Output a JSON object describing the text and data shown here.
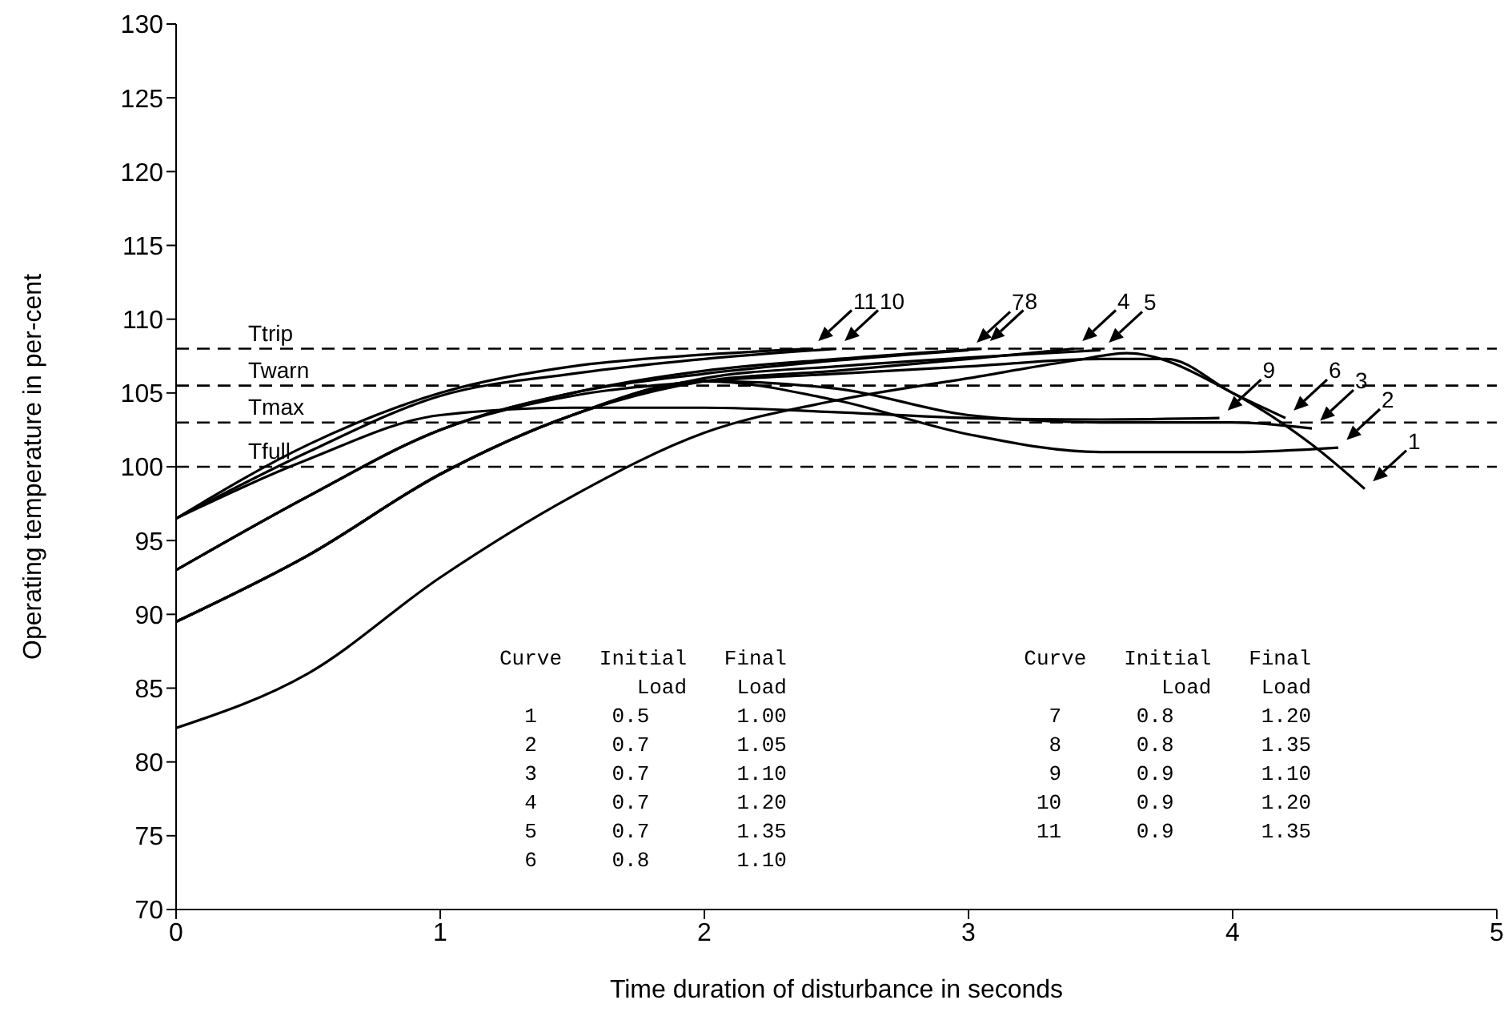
{
  "chart_data": {
    "type": "line",
    "xlabel": "Time duration of disturbance in seconds",
    "ylabel": "Operating temperature in per-cent",
    "xlim": [
      0,
      5
    ],
    "xticks": [
      0,
      1,
      2,
      3,
      4,
      5
    ],
    "ylim": [
      70,
      130
    ],
    "yticks": [
      70,
      75,
      80,
      85,
      90,
      95,
      100,
      105,
      110,
      115,
      120,
      125,
      130
    ],
    "grid": false,
    "legend": false,
    "marker": "none",
    "line_style": "solid",
    "series": [
      {
        "color": "#000000",
        "x": [
          0,
          0.5,
          1,
          1.5,
          2,
          2.5,
          3,
          3.4,
          3.6,
          4,
          4.3,
          4.5
        ],
        "values": [
          82.3,
          86,
          92.5,
          98,
          102.3,
          104.5,
          106,
          107.2,
          107.7,
          105,
          101.5,
          98.5
        ]
      },
      {
        "color": "#000000",
        "x": [
          0,
          0.5,
          1,
          1.5,
          2,
          2.5,
          3,
          3.5,
          4,
          4.4
        ],
        "values": [
          89.5,
          94,
          99.5,
          103.5,
          105.8,
          104.5,
          102.2,
          101,
          101,
          101.3
        ]
      },
      {
        "color": "#000000",
        "x": [
          0,
          0.5,
          1,
          1.5,
          2,
          2.5,
          3,
          3.5,
          4,
          4.3
        ],
        "values": [
          89.5,
          94,
          99.5,
          103.5,
          105.8,
          105.3,
          103.5,
          103,
          103,
          102.6
        ]
      },
      {
        "color": "#000000",
        "x": [
          0,
          0.5,
          1,
          1.5,
          2,
          2.5,
          3,
          3.4
        ],
        "values": [
          89.5,
          94,
          99.5,
          103.5,
          105.8,
          106.5,
          107.3,
          108
        ]
      },
      {
        "color": "#000000",
        "x": [
          0,
          0.5,
          1,
          1.5,
          2,
          2.5,
          3,
          3.5
        ],
        "values": [
          89.5,
          94,
          99.5,
          103.5,
          106,
          106.8,
          107.4,
          107.9
        ]
      },
      {
        "color": "#000000",
        "x": [
          0,
          0.5,
          1,
          1.5,
          2,
          2.5,
          3,
          3.5,
          3.75,
          4,
          4.2
        ],
        "values": [
          93,
          98,
          102.5,
          104.8,
          105.8,
          106.3,
          106.8,
          107.3,
          107.3,
          105,
          103.3
        ]
      },
      {
        "color": "#000000",
        "x": [
          0,
          0.5,
          1,
          1.5,
          2,
          2.5,
          3
        ],
        "values": [
          93,
          98,
          102.5,
          105,
          106.3,
          107.2,
          107.9
        ]
      },
      {
        "color": "#000000",
        "x": [
          0,
          0.5,
          1,
          1.5,
          2,
          2.5,
          3.05
        ],
        "values": [
          93,
          98,
          102.5,
          105,
          106.5,
          107.3,
          108
        ]
      },
      {
        "color": "#000000",
        "x": [
          0,
          0.5,
          1,
          1.5,
          2,
          2.5,
          3,
          3.5,
          3.95
        ],
        "values": [
          96.5,
          100.5,
          103.5,
          104,
          104,
          103.7,
          103.3,
          103.2,
          103.3
        ]
      },
      {
        "color": "#000000",
        "x": [
          0,
          0.5,
          1,
          1.5,
          2,
          2.5
        ],
        "values": [
          96.5,
          101,
          104.8,
          106.3,
          107.3,
          108
        ]
      },
      {
        "color": "#000000",
        "x": [
          0,
          0.5,
          1,
          1.5,
          2,
          2.4
        ],
        "values": [
          96.5,
          101.5,
          105,
          106.8,
          107.6,
          108
        ]
      }
    ],
    "ref_lines": [
      {
        "axis": "y",
        "value": 108,
        "label": "Ttrip",
        "color": "#000000",
        "line_style": "dashed"
      },
      {
        "axis": "y",
        "value": 105.5,
        "label": "Twarn",
        "color": "#000000",
        "line_style": "dashed"
      },
      {
        "axis": "y",
        "value": 103,
        "label": "Tmax",
        "color": "#000000",
        "line_style": "dashed"
      },
      {
        "axis": "y",
        "value": 100,
        "label": "Tfull",
        "color": "#000000",
        "line_style": "dashed"
      }
    ],
    "annotations": [
      {
        "text": "1",
        "x": 4.5,
        "y": 98.5
      },
      {
        "text": "2",
        "x": 4.4,
        "y": 101.3
      },
      {
        "text": "3",
        "x": 4.3,
        "y": 102.6
      },
      {
        "text": "4",
        "x": 3.4,
        "y": 108
      },
      {
        "text": "5",
        "x": 3.5,
        "y": 107.9
      },
      {
        "text": "6",
        "x": 4.2,
        "y": 103.3
      },
      {
        "text": "7",
        "x": 3,
        "y": 107.9
      },
      {
        "text": "8",
        "x": 3.05,
        "y": 108
      },
      {
        "text": "9",
        "x": 3.95,
        "y": 103.3
      },
      {
        "text": "10",
        "x": 2.5,
        "y": 108
      },
      {
        "text": "11",
        "x": 2.4,
        "y": 108
      },
      "Curve   Initial   Final                   Curve   Initial   Final",
      "           Load    Load                              Load    Load",
      "  1      0.5       1.00                     7      0.8       1.20",
      "  2      0.7       1.05                     8      0.8       1.35",
      "  3      0.7       1.10                     9      0.9       1.10",
      "  4      0.7       1.20                    10      0.9       1.20",
      "  5      0.7       1.35                    11      0.9       1.35",
      "  6      0.8       1.10"
    ]
  }
}
